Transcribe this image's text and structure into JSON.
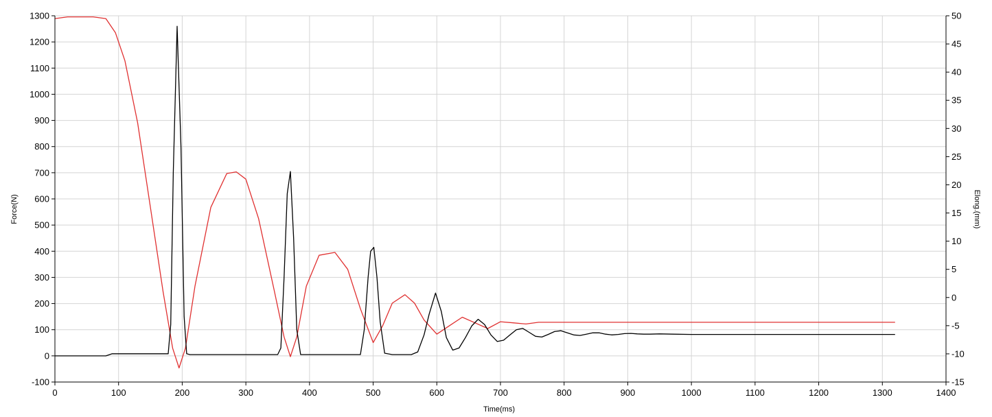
{
  "chart_data": {
    "type": "line",
    "xlabel": "Time(ms)",
    "ylabel_left": "Force(N)",
    "ylabel_right": "Elong.(mm)",
    "xlim": [
      0,
      1400
    ],
    "ylim_left": [
      -100,
      1300
    ],
    "ylim_right": [
      -15,
      50
    ],
    "x_ticks": [
      0,
      100,
      200,
      300,
      400,
      500,
      600,
      700,
      800,
      900,
      1000,
      1100,
      1200,
      1300,
      1400
    ],
    "y_left_ticks": [
      -100,
      0,
      100,
      200,
      300,
      400,
      500,
      600,
      700,
      800,
      900,
      1000,
      1100,
      1200,
      1300
    ],
    "y_right_ticks": [
      -15,
      -10,
      -5,
      0,
      5,
      10,
      15,
      20,
      25,
      30,
      35,
      40,
      45,
      50
    ],
    "grid": true,
    "colors": {
      "force": "#000000",
      "elongation": "#e03030",
      "grid": "#d4d4d4",
      "axis": "#000000"
    },
    "series": [
      {
        "axis": "left",
        "color": "#000000",
        "x": [
          0,
          80,
          90,
          178,
          182,
          186,
          192,
          198,
          203,
          207,
          212,
          250,
          350,
          355,
          360,
          365,
          370,
          375,
          380,
          386,
          400,
          480,
          486,
          492,
          496,
          501,
          506,
          511,
          518,
          530,
          560,
          570,
          580,
          588,
          598,
          607,
          615,
          625,
          635,
          645,
          655,
          665,
          675,
          685,
          695,
          705,
          715,
          725,
          735,
          745,
          755,
          765,
          775,
          785,
          795,
          805,
          815,
          825,
          835,
          845,
          855,
          865,
          875,
          885,
          895,
          905,
          915,
          925,
          935,
          950,
          970,
          1000,
          1100,
          1200,
          1320
        ],
        "y": [
          0,
          0,
          8,
          8,
          120,
          700,
          1260,
          800,
          150,
          8,
          5,
          5,
          5,
          30,
          300,
          620,
          705,
          450,
          100,
          5,
          5,
          5,
          100,
          300,
          400,
          415,
          300,
          130,
          10,
          5,
          5,
          15,
          80,
          160,
          240,
          170,
          70,
          22,
          30,
          70,
          115,
          140,
          120,
          80,
          55,
          60,
          80,
          100,
          105,
          90,
          75,
          72,
          82,
          93,
          96,
          88,
          80,
          78,
          83,
          88,
          88,
          83,
          80,
          82,
          85,
          86,
          84,
          83,
          83,
          84,
          83,
          82,
          82,
          82,
          82
        ]
      },
      {
        "axis": "right",
        "color": "#e03030",
        "x": [
          0,
          20,
          60,
          80,
          95,
          110,
          130,
          150,
          170,
          185,
          195,
          205,
          220,
          245,
          270,
          285,
          300,
          320,
          345,
          360,
          370,
          380,
          395,
          415,
          440,
          460,
          480,
          500,
          515,
          530,
          550,
          565,
          580,
          600,
          620,
          640,
          660,
          680,
          700,
          720,
          740,
          760,
          780,
          800,
          900,
          1000,
          1100,
          1200,
          1320
        ],
        "y": [
          49.5,
          49.8,
          49.8,
          49.5,
          47,
          42,
          31,
          16,
          1,
          -9,
          -12.5,
          -9,
          2,
          16,
          22,
          22.3,
          21,
          14,
          1,
          -7,
          -10.5,
          -7,
          2,
          7.5,
          8,
          5,
          -2,
          -8,
          -5,
          -1,
          0.5,
          -1,
          -4,
          -6.5,
          -5,
          -3.5,
          -4.5,
          -5.5,
          -4.3,
          -4.5,
          -4.7,
          -4.4,
          -4.4,
          -4.4,
          -4.4,
          -4.4,
          -4.4,
          -4.4,
          -4.4
        ]
      }
    ]
  }
}
